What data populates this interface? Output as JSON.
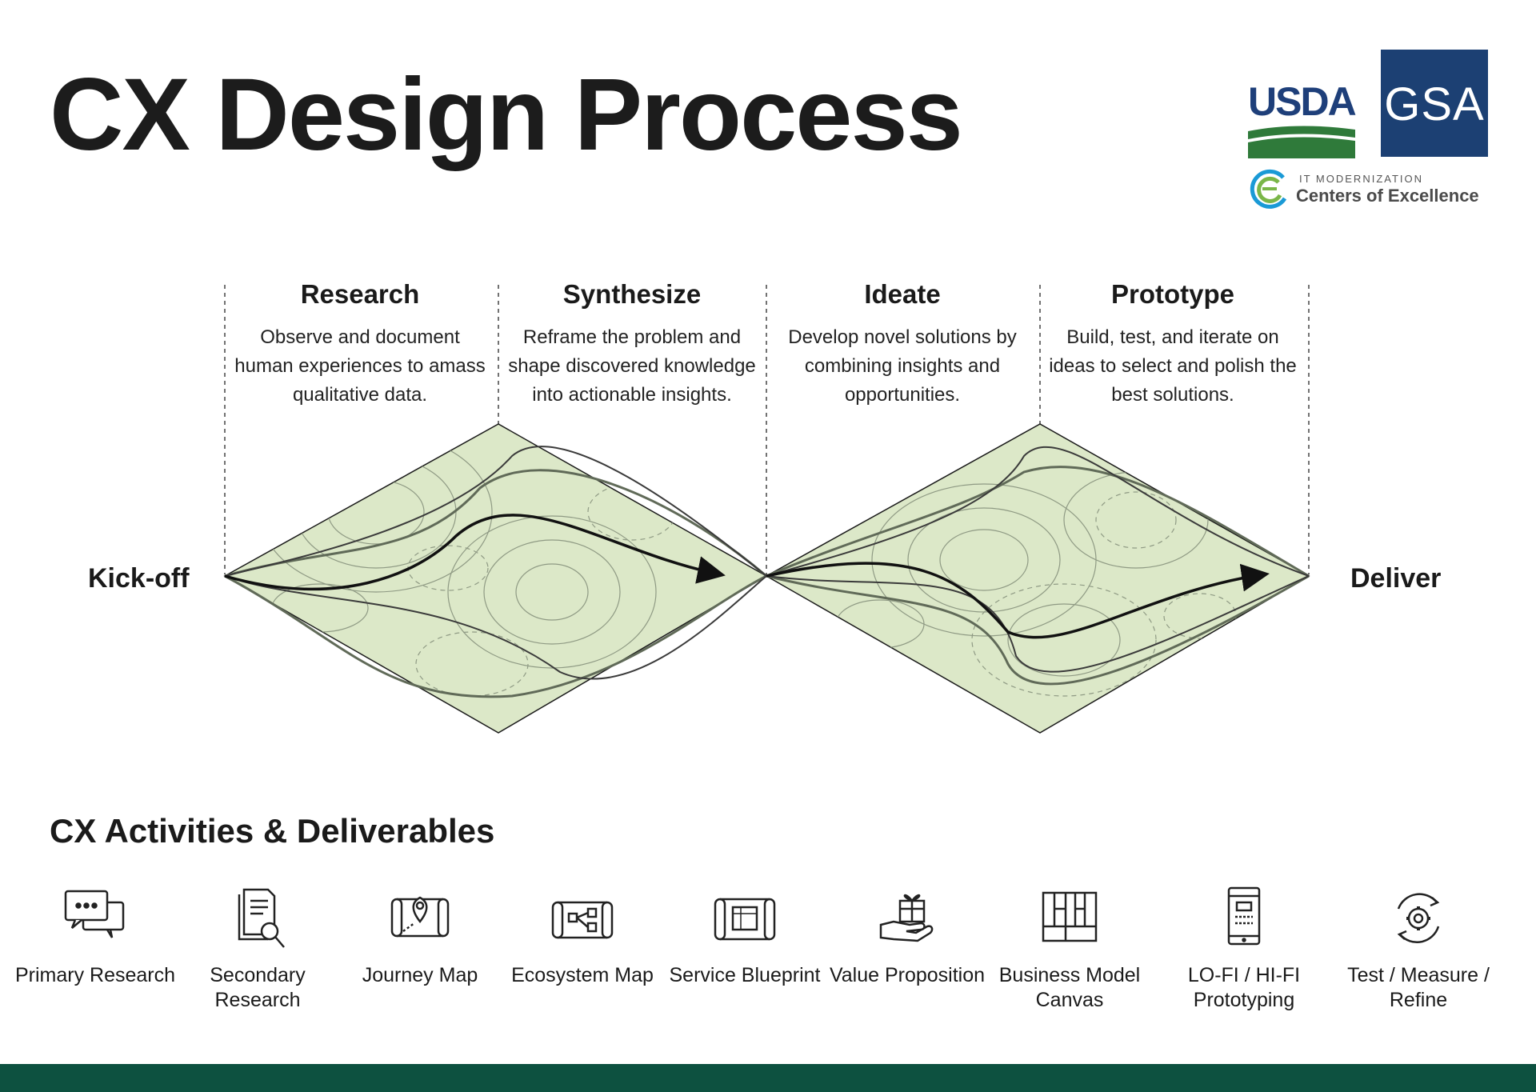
{
  "title": "CX Design Process",
  "logos": {
    "usda": "USDA",
    "gsa": "GSA",
    "coe_small": "IT MODERNIZATION",
    "coe_big": "Centers of Excellence"
  },
  "phases": [
    {
      "title": "Research",
      "description": "Observe and document human experiences to amass qualitative data."
    },
    {
      "title": "Synthesize",
      "description": "Reframe the problem and shape discovered knowledge into actionable insights."
    },
    {
      "title": "Ideate",
      "description": "Develop novel solutions by combining insights and opportunities."
    },
    {
      "title": "Prototype",
      "description": "Build, test, and iterate on ideas to select and polish the best solutions."
    }
  ],
  "endpoints": {
    "start": "Kick-off",
    "end": "Deliver"
  },
  "activities_title": "CX Activities & Deliverables",
  "activities": [
    {
      "label": "Primary Research",
      "icon": "chat-bubbles-icon"
    },
    {
      "label": "Secondary Research",
      "icon": "document-search-icon"
    },
    {
      "label": "Journey Map",
      "icon": "map-pin-icon"
    },
    {
      "label": "Ecosystem Map",
      "icon": "ecosystem-scroll-icon"
    },
    {
      "label": "Service Blueprint",
      "icon": "blueprint-scroll-icon"
    },
    {
      "label": "Value Proposition",
      "icon": "gift-hand-icon"
    },
    {
      "label": "Business Model Canvas",
      "icon": "canvas-grid-icon"
    },
    {
      "label": "LO-FI / HI-FI Prototyping",
      "icon": "mobile-wireframe-icon"
    },
    {
      "label": "Test / Measure / Refine",
      "icon": "gear-cycle-icon"
    }
  ],
  "colors": {
    "diamond_fill": "#dce8c8",
    "contour": "#8f9a84",
    "footer": "#0d5140",
    "usda_blue": "#1e3f7a",
    "usda_green": "#2f7a3a",
    "gsa_blue": "#1c4073",
    "coe_green": "#7ab648",
    "coe_blue": "#1a9ad6"
  }
}
